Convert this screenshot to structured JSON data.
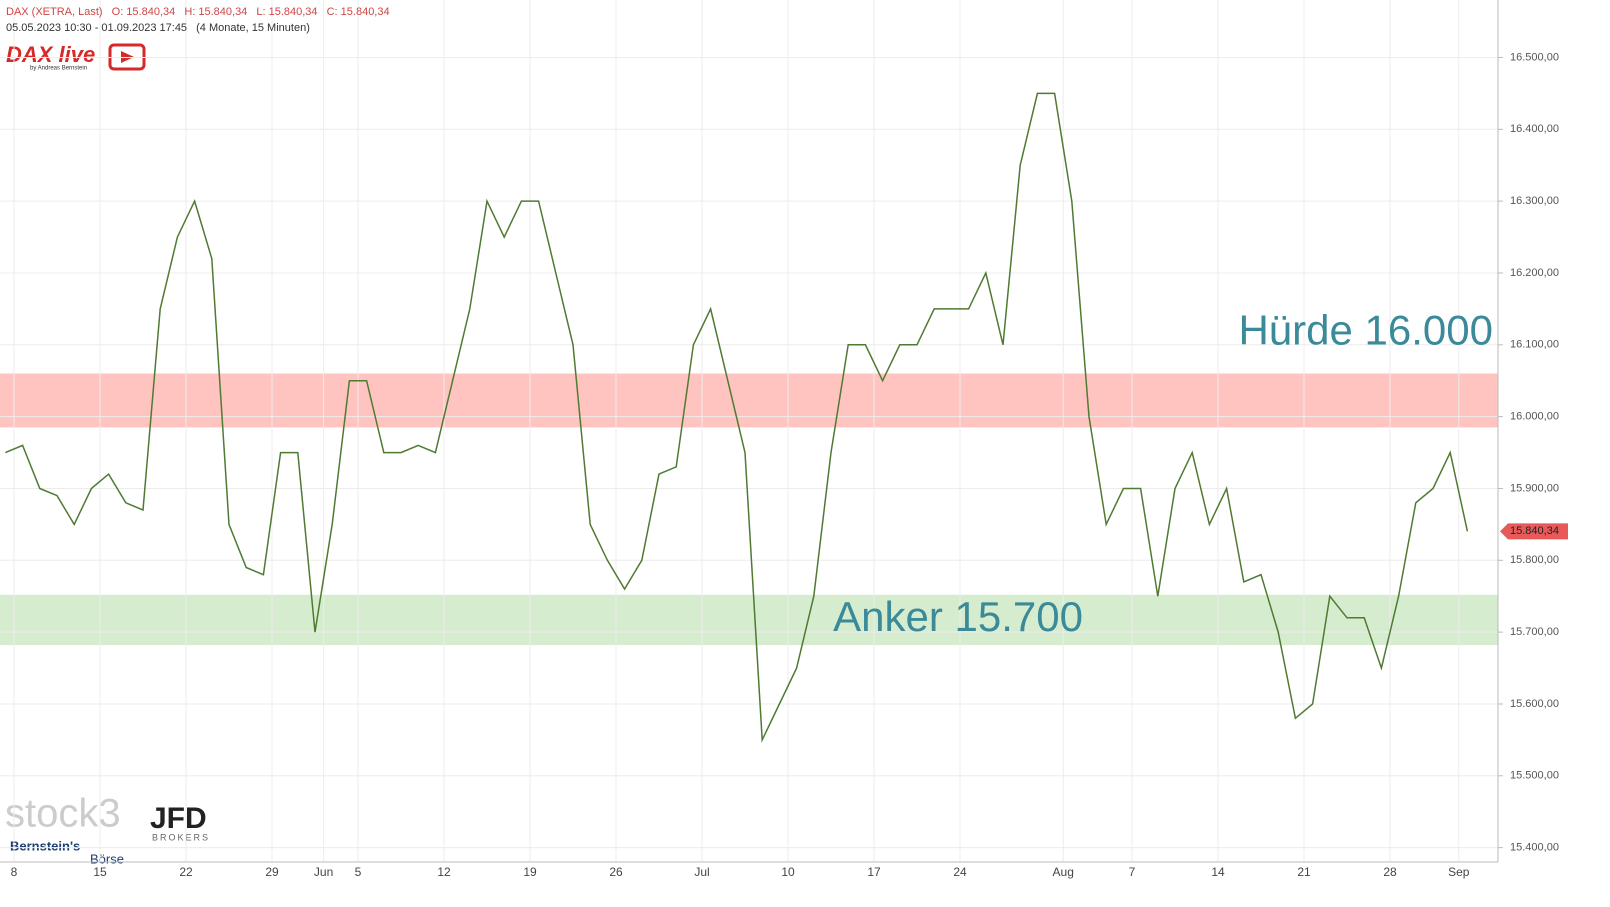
{
  "header": {
    "symbol": "DAX (XETRA, Last)",
    "ohlc": [
      "O: 15.840,34",
      "H: 15.840,34",
      "L: 15.840,34",
      "C: 15.840,34"
    ],
    "range": "05.05.2023 10:30 - 01.09.2023 17:45",
    "period": "(4 Monate, 15 Minuten)"
  },
  "logos": {
    "dax_live": "DAX live",
    "dax_live_by": "by Andreas Bernstein",
    "stock3": "stock3",
    "jfd": "JFD",
    "jfd_sub": "BROKERS",
    "bernstein": "Bernstein's",
    "boerse": "Börse"
  },
  "chart_data": {
    "type": "line",
    "color": "#4f7a32",
    "categories": [
      null,
      "8",
      null,
      null,
      null,
      null,
      "15",
      null,
      null,
      null,
      null,
      "22",
      null,
      null,
      null,
      null,
      "29",
      null,
      null,
      "Jun",
      null,
      "5",
      null,
      null,
      null,
      null,
      "12",
      null,
      null,
      null,
      null,
      "19",
      null,
      null,
      null,
      null,
      "26",
      null,
      null,
      null,
      null,
      "Jul",
      null,
      null,
      null,
      null,
      "10",
      null,
      null,
      null,
      null,
      "17",
      null,
      null,
      null,
      null,
      "24",
      null,
      null,
      null,
      null,
      null,
      "Aug",
      null,
      null,
      null,
      "7",
      null,
      null,
      null,
      null,
      "14",
      null,
      null,
      null,
      null,
      "21",
      null,
      null,
      null,
      null,
      "28",
      null,
      null,
      null,
      "Sep"
    ],
    "values": [
      15950,
      15960,
      15900,
      15890,
      15850,
      15900,
      15920,
      15880,
      15870,
      16150,
      16250,
      16300,
      16220,
      15850,
      15790,
      15780,
      15950,
      15950,
      15700,
      15850,
      16050,
      16050,
      15950,
      15950,
      15960,
      15950,
      16050,
      16150,
      16300,
      16250,
      16300,
      16300,
      16200,
      16100,
      15850,
      15800,
      15760,
      15800,
      15920,
      15930,
      16100,
      16150,
      16050,
      15950,
      15550,
      15600,
      15650,
      15750,
      15950,
      16100,
      16100,
      16050,
      16100,
      16100,
      16150,
      16150,
      16150,
      16200,
      16100,
      16350,
      16450,
      16450,
      16300,
      16000,
      15850,
      15900,
      15900,
      15750,
      15900,
      15950,
      15850,
      15900,
      15770,
      15780,
      15700,
      15580,
      15600,
      15750,
      15720,
      15720,
      15650,
      15750,
      15880,
      15900,
      15950,
      15840.34
    ],
    "ylim": [
      15380,
      16580
    ],
    "yticks": [
      {
        "value": 15400,
        "label": "15.400,00"
      },
      {
        "value": 15500,
        "label": "15.500,00"
      },
      {
        "value": 15600,
        "label": "15.600,00"
      },
      {
        "value": 15700,
        "label": "15.700,00"
      },
      {
        "value": 15800,
        "label": "15.800,00"
      },
      {
        "value": 15900,
        "label": "15.900,00"
      },
      {
        "value": 16000,
        "label": "16.000,00"
      },
      {
        "value": 16100,
        "label": "16.100,00"
      },
      {
        "value": 16200,
        "label": "16.200,00"
      },
      {
        "value": 16300,
        "label": "16.300,00"
      },
      {
        "value": 16400,
        "label": "16.400,00"
      },
      {
        "value": 16500,
        "label": "16.500,00"
      }
    ],
    "grid": true,
    "bands": [
      {
        "label": "Hürde 16.000",
        "from": 15985,
        "to": 16060,
        "color": "#ffc4c0"
      },
      {
        "label": "Anker 15.700",
        "from": 15682,
        "to": 15752,
        "color": "#d6ecce"
      }
    ],
    "last_price": {
      "value": 15840.34,
      "label": "15.840,34",
      "color": "#e85a5a"
    }
  }
}
